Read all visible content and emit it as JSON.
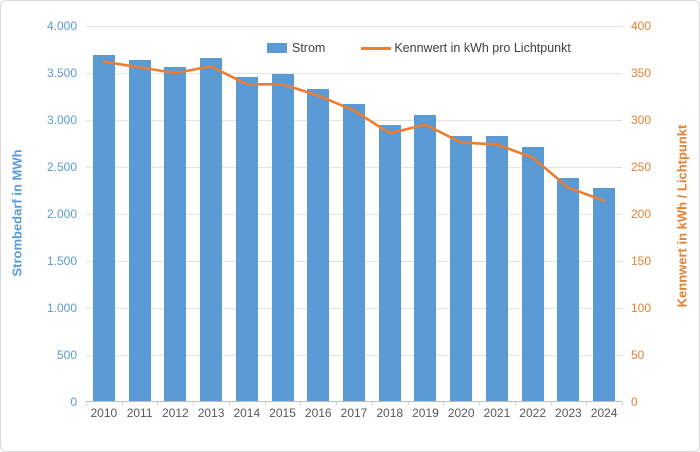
{
  "colors": {
    "bar_blue": "#5B9BD5",
    "line_orange": "#ED7D31",
    "left_axis_text": "#5B9BD5",
    "right_axis_text": "#E48234",
    "x_axis_text": "#595959",
    "legend_text": "#404040",
    "gridline": "#E2E2E2"
  },
  "legend": {
    "strom_label": "Strom",
    "kennwert_label": "Kennwert in kWh pro Lichtpunkt"
  },
  "chart_data": {
    "type": "bar",
    "combo": "bar+line dual axis",
    "title": "",
    "categories": [
      "2010",
      "2011",
      "2012",
      "2013",
      "2014",
      "2015",
      "2016",
      "2017",
      "2018",
      "2019",
      "2020",
      "2021",
      "2022",
      "2023",
      "2024"
    ],
    "series": [
      {
        "name": "Strom",
        "type": "bar",
        "axis": "left",
        "color": "#5B9BD5",
        "values": [
          3690,
          3635,
          3565,
          3655,
          3460,
          3490,
          3330,
          3170,
          2950,
          3050,
          2830,
          2830,
          2710,
          2380,
          2280
        ]
      },
      {
        "name": "Kennwert in kWh pro Lichtpunkt",
        "type": "line",
        "axis": "right",
        "color": "#ED7D31",
        "values": [
          362,
          356,
          350,
          357,
          338,
          338,
          326,
          310,
          286,
          295,
          276,
          274,
          260,
          228,
          214
        ]
      }
    ],
    "left_axis": {
      "title": "Strombedarf in MWh",
      "min": 0,
      "max": 4000,
      "step": 500,
      "tick_labels": [
        "4.000",
        "3.500",
        "3.000",
        "2.500",
        "2.000",
        "1.500",
        "1.000",
        "500",
        "0"
      ]
    },
    "right_axis": {
      "title": "Kennwert in kWh / Lichtpunkt",
      "min": 0,
      "max": 400,
      "step": 50,
      "tick_labels": [
        "400",
        "350",
        "300",
        "250",
        "200",
        "150",
        "100",
        "50",
        "0"
      ]
    },
    "legend_position": "top",
    "grid": "horizontal only"
  }
}
